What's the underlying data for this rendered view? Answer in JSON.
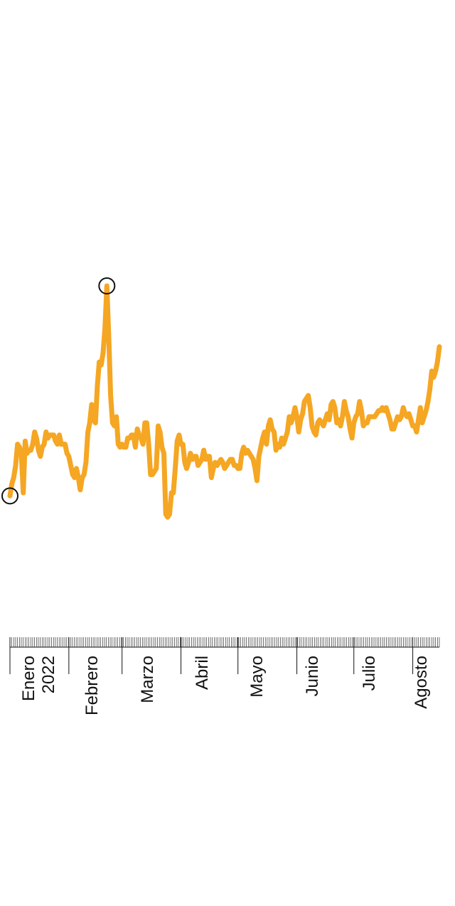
{
  "chart_data": {
    "type": "line",
    "title": "",
    "xlabel": "",
    "ylabel": "",
    "months": [
      {
        "label": "Enero",
        "year": "2022"
      },
      {
        "label": "Febrero"
      },
      {
        "label": "Marzo"
      },
      {
        "label": "Abril"
      },
      {
        "label": "Mayo"
      },
      {
        "label": "Junio"
      },
      {
        "label": "Julio"
      },
      {
        "label": "Agosto"
      }
    ],
    "xlim": [
      1,
      227
    ],
    "ylim": [
      0,
      100
    ],
    "colors": {
      "line": "#F5A623",
      "marker": "#111111",
      "axis": "#111111"
    },
    "series": [
      {
        "x": [
          1,
          2,
          3,
          4,
          5,
          6,
          7,
          8,
          9,
          10,
          11,
          12,
          13,
          14,
          15,
          16,
          17,
          18,
          19,
          20,
          21,
          22,
          23,
          24,
          25,
          26,
          27,
          28,
          29,
          30,
          31,
          32,
          33,
          34,
          35,
          36,
          37,
          38,
          39,
          40,
          41,
          42,
          43,
          44,
          45,
          46,
          47,
          48,
          49,
          50,
          51,
          52,
          53,
          54,
          55,
          56,
          57,
          58,
          59,
          60,
          61,
          62,
          63,
          64,
          65,
          66,
          67,
          68,
          69,
          70,
          71,
          72,
          73,
          74,
          75,
          76,
          77,
          78,
          79,
          80,
          81,
          82,
          83,
          84,
          85,
          86,
          87,
          88,
          89,
          90,
          91,
          92,
          93,
          94,
          95,
          96,
          97,
          98,
          99,
          100,
          101,
          102,
          103,
          104,
          105,
          106,
          107,
          108,
          109,
          110,
          111,
          112,
          113,
          114,
          115,
          116,
          117,
          118,
          119,
          120,
          121,
          122,
          123,
          124,
          125,
          126,
          127,
          128,
          129,
          130,
          131,
          132,
          133,
          134,
          135,
          136,
          137,
          138,
          139,
          140,
          141,
          142,
          143,
          144,
          145,
          146,
          147,
          148,
          149,
          150,
          151,
          152,
          153,
          154,
          155,
          156,
          157,
          158,
          159,
          160,
          161,
          162,
          163,
          164,
          165,
          166,
          167,
          168,
          169,
          170,
          171,
          172,
          173,
          174,
          175,
          176,
          177,
          178,
          179,
          180,
          181,
          182,
          183,
          184,
          185,
          186,
          187,
          188,
          189,
          190,
          191,
          192,
          193,
          194,
          195,
          196,
          197,
          198,
          199,
          200,
          201,
          202,
          203,
          204,
          205,
          206,
          207,
          208,
          209,
          210,
          211,
          212,
          213,
          214,
          215,
          216,
          217,
          218,
          219,
          220,
          221,
          222,
          223,
          224,
          225,
          226,
          227
        ],
        "y": [
          31,
          35,
          37,
          41,
          48,
          47,
          45,
          32,
          49,
          45,
          46,
          46,
          48,
          52,
          50,
          46,
          44,
          47,
          48,
          52,
          50,
          51,
          51,
          51,
          49,
          48,
          51,
          48,
          48,
          48,
          45,
          44,
          41,
          38,
          37,
          40,
          37,
          33,
          37,
          38,
          42,
          52,
          55,
          61,
          56,
          55,
          67,
          75,
          74,
          78,
          86,
          100,
          83,
          64,
          55,
          54,
          57,
          48,
          47,
          48,
          47,
          47,
          50,
          50,
          51,
          51,
          47,
          53,
          51,
          50,
          48,
          55,
          55,
          48,
          38,
          38,
          39,
          40,
          54,
          52,
          47,
          45,
          25,
          24,
          25,
          32,
          32,
          40,
          49,
          51,
          48,
          48,
          42,
          40,
          42,
          45,
          43,
          44,
          44,
          41,
          42,
          43,
          46,
          43,
          44,
          44,
          37,
          40,
          42,
          41,
          42,
          43,
          42,
          40,
          41,
          42,
          43,
          43,
          41,
          41,
          40,
          40,
          45,
          47,
          45,
          46,
          45,
          44,
          43,
          40,
          36,
          44,
          47,
          50,
          52,
          48,
          54,
          56,
          53,
          52,
          46,
          48,
          47,
          50,
          48,
          50,
          52,
          57,
          55,
          57,
          60,
          57,
          52,
          56,
          58,
          62,
          63,
          64,
          60,
          54,
          52,
          51,
          55,
          56,
          55,
          54,
          56,
          58,
          56,
          61,
          62,
          60,
          55,
          56,
          54,
          57,
          62,
          59,
          57,
          53,
          50,
          55,
          57,
          58,
          62,
          59,
          54,
          55,
          55,
          57,
          57,
          57,
          57,
          58,
          59,
          59,
          60,
          59,
          60,
          58,
          56,
          53,
          53,
          55,
          57,
          56,
          57,
          60,
          58,
          57,
          58,
          56,
          54,
          54,
          52,
          56,
          60,
          55,
          57,
          59,
          62,
          66,
          72,
          70,
          72,
          75,
          80
        ]
      }
    ],
    "markers": [
      {
        "x": 1,
        "y": 31
      },
      {
        "x": 52,
        "y": 100
      }
    ]
  }
}
